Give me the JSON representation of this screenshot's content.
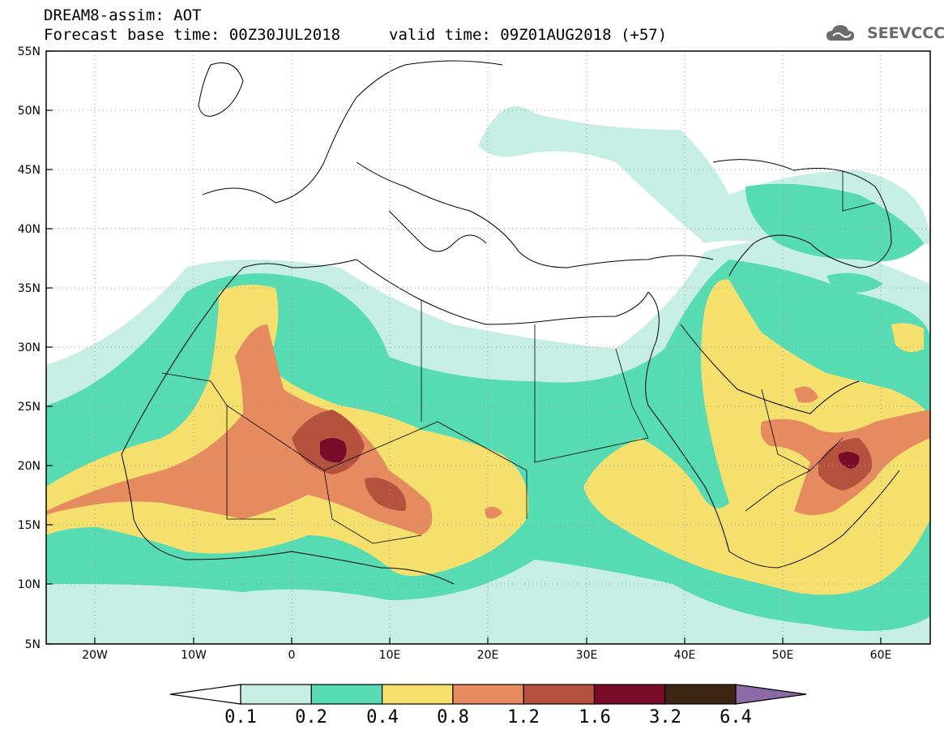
{
  "header": {
    "title_line1": "DREAM8-assim: AOT",
    "title_line2": "Forecast base time: 00Z30JUL2018",
    "valid_time": "valid time: 09Z01AUG2018 (+57)",
    "logo_text": "SEEVCCC",
    "logo_icon": "cloud-logo-icon"
  },
  "map": {
    "lon_range": [
      -25,
      65
    ],
    "lat_range": [
      5,
      55
    ],
    "lat_labels": [
      "55N",
      "50N",
      "45N",
      "40N",
      "35N",
      "30N",
      "25N",
      "20N",
      "15N",
      "10N",
      "5N"
    ],
    "lon_labels": [
      "20W",
      "10W",
      "0",
      "10E",
      "20E",
      "30E",
      "40E",
      "50E",
      "60E"
    ],
    "grid": "dotted"
  },
  "colorbar": {
    "labels": [
      "0.1",
      "0.2",
      "0.4",
      "0.8",
      "1.2",
      "1.6",
      "3.2",
      "6.4"
    ],
    "colors": [
      "#ffffff",
      "#c7eee5",
      "#57dbb3",
      "#f5e06e",
      "#e68a60",
      "#b4523e",
      "#7a0a2a",
      "#3d2413",
      "#8b6aa6"
    ]
  }
}
